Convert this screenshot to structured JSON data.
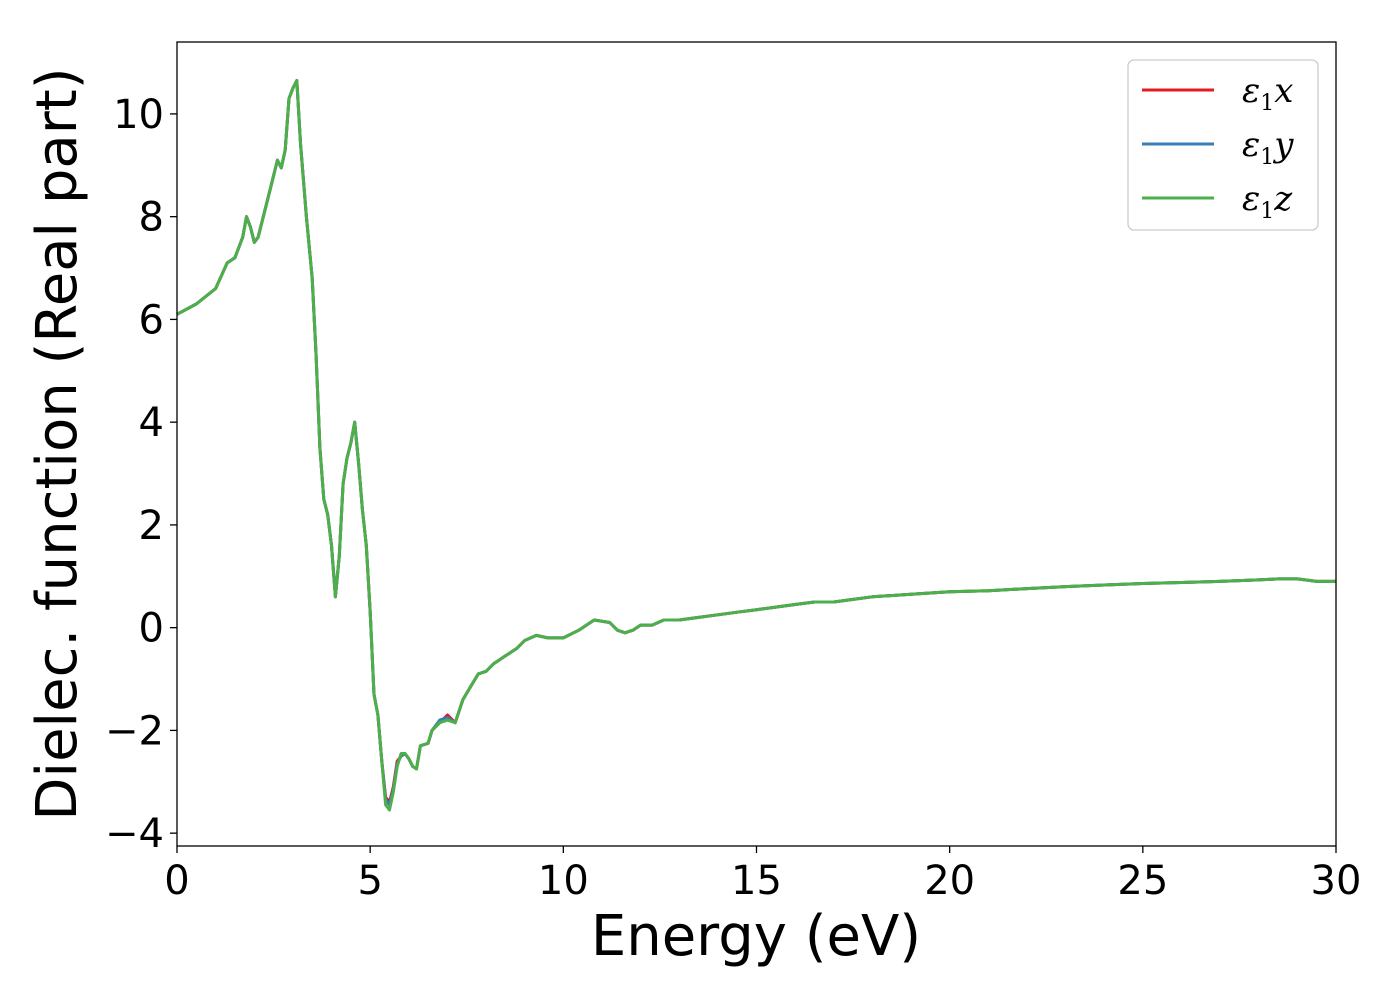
{
  "chart_data": {
    "type": "line",
    "xlabel": "Energy (eV)",
    "ylabel": "Dielec. function (Real part)",
    "xlim": [
      0,
      30
    ],
    "ylim": [
      -4.25,
      11.4
    ],
    "x_ticks": [
      0,
      5,
      10,
      15,
      20,
      25,
      30
    ],
    "x_tick_labels": [
      "0",
      "5",
      "10",
      "15",
      "20",
      "25",
      "30"
    ],
    "y_ticks": [
      -4,
      -2,
      0,
      2,
      4,
      6,
      8,
      10
    ],
    "y_tick_labels": [
      "−4",
      "−2",
      "0",
      "2",
      "4",
      "6",
      "8",
      "10"
    ],
    "grid": false,
    "legend_position": "top-right",
    "series": [
      {
        "name": "ε",
        "name_sub": "1",
        "name_var": "x",
        "color": "#e41a1c",
        "x": [
          0,
          0.5,
          1.0,
          1.3,
          1.5,
          1.7,
          1.8,
          1.9,
          2.0,
          2.1,
          2.3,
          2.5,
          2.6,
          2.7,
          2.8,
          2.9,
          3.0,
          3.1,
          3.2,
          3.35,
          3.5,
          3.6,
          3.7,
          3.8,
          3.9,
          4.0,
          4.1,
          4.2,
          4.3,
          4.4,
          4.5,
          4.6,
          4.7,
          4.8,
          4.9,
          5.0,
          5.1,
          5.2,
          5.3,
          5.4,
          5.5,
          5.6,
          5.7,
          5.8,
          5.9,
          6.0,
          6.1,
          6.2,
          6.3,
          6.5,
          6.6,
          6.8,
          7.0,
          7.2,
          7.4,
          7.6,
          7.8,
          8.0,
          8.2,
          8.5,
          8.8,
          9.0,
          9.3,
          9.6,
          10.0,
          10.4,
          10.8,
          11.2,
          11.4,
          11.6,
          11.8,
          12.0,
          12.3,
          12.6,
          13.0,
          13.5,
          14.0,
          14.5,
          15.0,
          15.5,
          16.0,
          16.5,
          17.0,
          17.5,
          18.0,
          19.0,
          20.0,
          21.0,
          22.0,
          23.0,
          24.0,
          25.0,
          26.0,
          27.0,
          28.0,
          28.5,
          29.0,
          29.5,
          30.0
        ],
        "y": [
          6.1,
          6.3,
          6.6,
          7.1,
          7.2,
          7.6,
          8.0,
          7.8,
          7.5,
          7.6,
          8.2,
          8.8,
          9.1,
          8.95,
          9.3,
          10.3,
          10.5,
          10.65,
          9.4,
          8.0,
          6.8,
          5.3,
          3.5,
          2.5,
          2.2,
          1.6,
          0.6,
          1.4,
          2.8,
          3.3,
          3.6,
          4.0,
          3.2,
          2.3,
          1.6,
          0.3,
          -1.3,
          -1.7,
          -2.6,
          -3.3,
          -3.4,
          -3.1,
          -2.6,
          -2.5,
          -2.45,
          -2.55,
          -2.7,
          -2.75,
          -2.3,
          -2.25,
          -2.0,
          -1.85,
          -1.7,
          -1.85,
          -1.4,
          -1.15,
          -0.9,
          -0.85,
          -0.7,
          -0.55,
          -0.4,
          -0.25,
          -0.15,
          -0.2,
          -0.2,
          -0.05,
          0.15,
          0.1,
          -0.05,
          -0.1,
          -0.05,
          0.05,
          0.05,
          0.15,
          0.15,
          0.2,
          0.25,
          0.3,
          0.35,
          0.4,
          0.45,
          0.5,
          0.5,
          0.55,
          0.6,
          0.65,
          0.7,
          0.72,
          0.76,
          0.8,
          0.83,
          0.86,
          0.88,
          0.9,
          0.93,
          0.95,
          0.95,
          0.9,
          0.9
        ]
      },
      {
        "name": "ε",
        "name_sub": "1",
        "name_var": "y",
        "color": "#377eb8",
        "x": [
          0,
          0.5,
          1.0,
          1.3,
          1.5,
          1.7,
          1.8,
          1.9,
          2.0,
          2.1,
          2.3,
          2.5,
          2.6,
          2.7,
          2.8,
          2.9,
          3.0,
          3.1,
          3.2,
          3.35,
          3.5,
          3.6,
          3.7,
          3.8,
          3.9,
          4.0,
          4.1,
          4.2,
          4.3,
          4.4,
          4.5,
          4.6,
          4.7,
          4.8,
          4.9,
          5.0,
          5.1,
          5.2,
          5.3,
          5.4,
          5.5,
          5.6,
          5.7,
          5.8,
          5.9,
          6.0,
          6.1,
          6.2,
          6.3,
          6.5,
          6.6,
          6.8,
          7.0,
          7.2,
          7.4,
          7.6,
          7.8,
          8.0,
          8.2,
          8.5,
          8.8,
          9.0,
          9.3,
          9.6,
          10.0,
          10.4,
          10.8,
          11.2,
          11.4,
          11.6,
          11.8,
          12.0,
          12.3,
          12.6,
          13.0,
          13.5,
          14.0,
          14.5,
          15.0,
          15.5,
          16.0,
          16.5,
          17.0,
          17.5,
          18.0,
          19.0,
          20.0,
          21.0,
          22.0,
          23.0,
          24.0,
          25.0,
          26.0,
          27.0,
          28.0,
          28.5,
          29.0,
          29.5,
          30.0
        ],
        "y": [
          6.1,
          6.3,
          6.6,
          7.1,
          7.2,
          7.6,
          8.0,
          7.8,
          7.5,
          7.6,
          8.2,
          8.8,
          9.1,
          8.95,
          9.3,
          10.3,
          10.5,
          10.65,
          9.4,
          8.0,
          6.8,
          5.3,
          3.5,
          2.5,
          2.2,
          1.6,
          0.6,
          1.4,
          2.8,
          3.3,
          3.6,
          4.0,
          3.2,
          2.3,
          1.6,
          0.3,
          -1.3,
          -1.7,
          -2.6,
          -3.35,
          -3.45,
          -3.15,
          -2.65,
          -2.5,
          -2.45,
          -2.55,
          -2.7,
          -2.75,
          -2.3,
          -2.25,
          -2.0,
          -1.8,
          -1.75,
          -1.85,
          -1.4,
          -1.15,
          -0.9,
          -0.85,
          -0.7,
          -0.55,
          -0.4,
          -0.25,
          -0.15,
          -0.2,
          -0.2,
          -0.05,
          0.15,
          0.1,
          -0.05,
          -0.1,
          -0.05,
          0.05,
          0.05,
          0.15,
          0.15,
          0.2,
          0.25,
          0.3,
          0.35,
          0.4,
          0.45,
          0.5,
          0.5,
          0.55,
          0.6,
          0.65,
          0.7,
          0.72,
          0.76,
          0.8,
          0.83,
          0.86,
          0.88,
          0.9,
          0.93,
          0.95,
          0.95,
          0.9,
          0.9
        ]
      },
      {
        "name": "ε",
        "name_sub": "1",
        "name_var": "z",
        "color": "#4daf4a",
        "x": [
          0,
          0.5,
          1.0,
          1.3,
          1.5,
          1.7,
          1.8,
          1.9,
          2.0,
          2.1,
          2.3,
          2.5,
          2.6,
          2.7,
          2.8,
          2.9,
          3.0,
          3.1,
          3.2,
          3.35,
          3.5,
          3.6,
          3.7,
          3.8,
          3.9,
          4.0,
          4.1,
          4.2,
          4.3,
          4.4,
          4.5,
          4.6,
          4.7,
          4.8,
          4.9,
          5.0,
          5.1,
          5.2,
          5.3,
          5.4,
          5.5,
          5.6,
          5.7,
          5.8,
          5.9,
          6.0,
          6.1,
          6.2,
          6.3,
          6.5,
          6.6,
          6.8,
          7.0,
          7.2,
          7.4,
          7.6,
          7.8,
          8.0,
          8.2,
          8.5,
          8.8,
          9.0,
          9.3,
          9.6,
          10.0,
          10.4,
          10.8,
          11.2,
          11.4,
          11.6,
          11.8,
          12.0,
          12.3,
          12.6,
          13.0,
          13.5,
          14.0,
          14.5,
          15.0,
          15.5,
          16.0,
          16.5,
          17.0,
          17.5,
          18.0,
          19.0,
          20.0,
          21.0,
          22.0,
          23.0,
          24.0,
          25.0,
          26.0,
          27.0,
          28.0,
          28.5,
          29.0,
          29.5,
          30.0
        ],
        "y": [
          6.1,
          6.3,
          6.6,
          7.1,
          7.2,
          7.6,
          8.0,
          7.8,
          7.5,
          7.6,
          8.2,
          8.8,
          9.1,
          8.95,
          9.3,
          10.3,
          10.5,
          10.65,
          9.4,
          8.0,
          6.8,
          5.3,
          3.5,
          2.5,
          2.2,
          1.6,
          0.6,
          1.4,
          2.8,
          3.3,
          3.6,
          4.0,
          3.2,
          2.3,
          1.6,
          0.3,
          -1.3,
          -1.7,
          -2.6,
          -3.45,
          -3.55,
          -3.2,
          -2.7,
          -2.45,
          -2.45,
          -2.55,
          -2.7,
          -2.75,
          -2.3,
          -2.25,
          -2.0,
          -1.85,
          -1.8,
          -1.85,
          -1.4,
          -1.15,
          -0.9,
          -0.85,
          -0.7,
          -0.55,
          -0.4,
          -0.25,
          -0.15,
          -0.2,
          -0.2,
          -0.05,
          0.15,
          0.1,
          -0.05,
          -0.1,
          -0.05,
          0.05,
          0.05,
          0.15,
          0.15,
          0.2,
          0.25,
          0.3,
          0.35,
          0.4,
          0.45,
          0.5,
          0.5,
          0.55,
          0.6,
          0.65,
          0.7,
          0.72,
          0.76,
          0.8,
          0.83,
          0.86,
          0.88,
          0.9,
          0.93,
          0.95,
          0.95,
          0.9,
          0.9
        ]
      }
    ]
  }
}
